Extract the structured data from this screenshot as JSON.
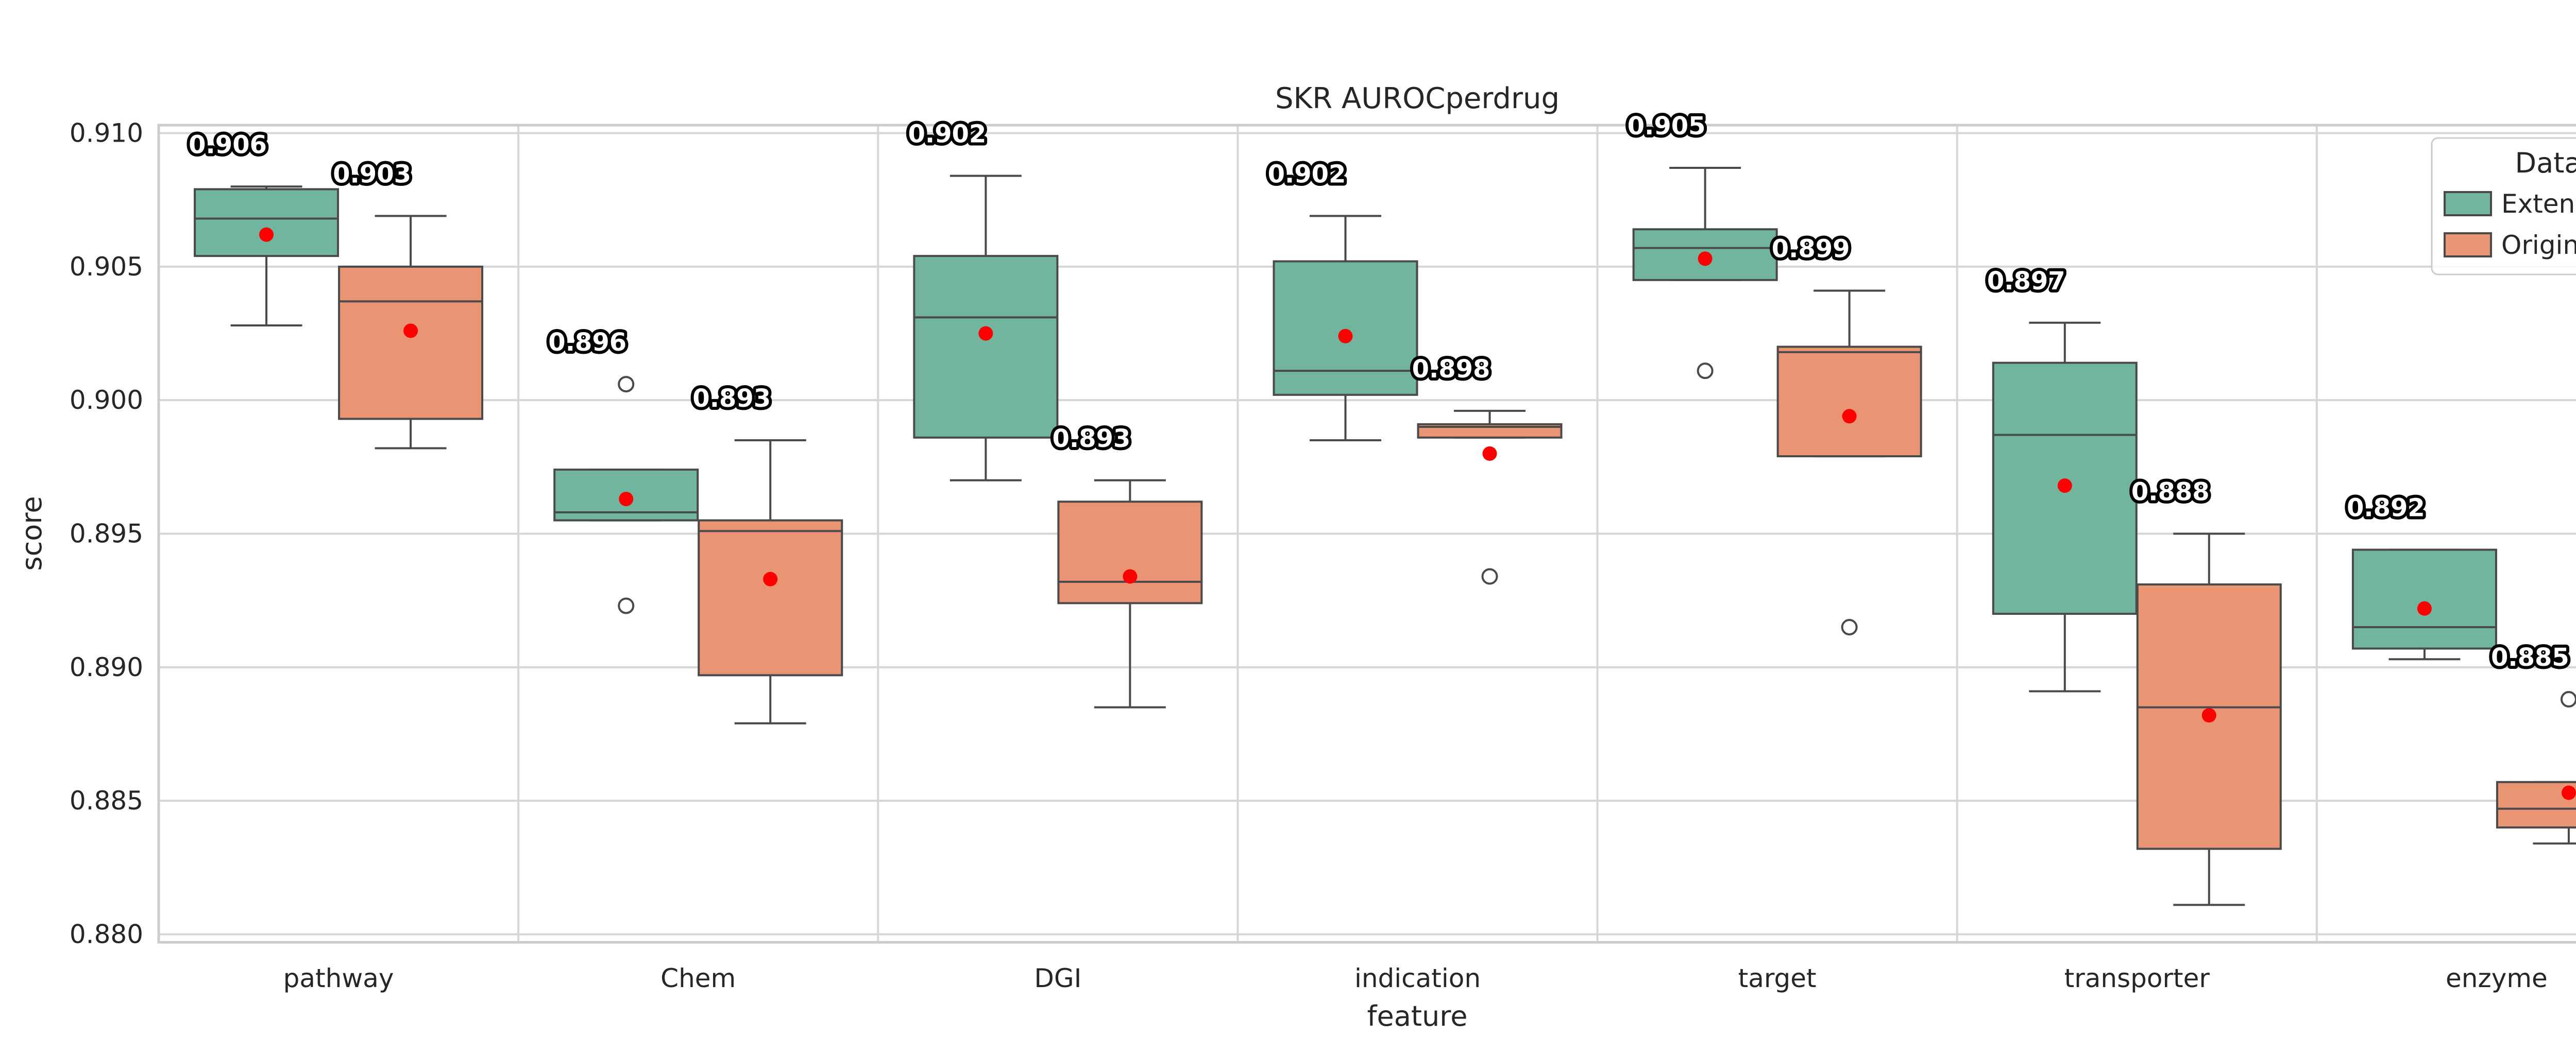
{
  "chart_data": {
    "type": "box",
    "title": "SKR AUROCperdrug",
    "xlabel": "feature",
    "ylabel": "score",
    "ylim": [
      0.8797,
      0.9103
    ],
    "yticks": [
      "0.880",
      "0.885",
      "0.890",
      "0.895",
      "0.900",
      "0.905",
      "0.910"
    ],
    "categories": [
      "pathway",
      "Chem",
      "DGI",
      "indication",
      "target",
      "transporter",
      "enzyme"
    ],
    "grid": true,
    "legend": {
      "title": "Data",
      "placement": "top-right",
      "entries": [
        {
          "name": "Extended",
          "color": "#72b59f"
        },
        {
          "name": "Original",
          "color": "#e99574"
        }
      ]
    },
    "series": [
      {
        "name": "Extended",
        "color": "#72b59f",
        "boxes": [
          {
            "category": "pathway",
            "whisker_low": 0.9028,
            "q1": 0.9054,
            "median": 0.9068,
            "q3": 0.9079,
            "whisker_high": 0.908,
            "outliers": [],
            "mean": 0.9062,
            "mean_label": "0.906"
          },
          {
            "category": "Chem",
            "whisker_low": 0.8955,
            "q1": 0.8955,
            "median": 0.8958,
            "q3": 0.8974,
            "whisker_high": 0.8974,
            "outliers": [
              0.8923,
              0.9006
            ],
            "mean": 0.8963,
            "mean_label": "0.896"
          },
          {
            "category": "DGI",
            "whisker_low": 0.897,
            "q1": 0.8986,
            "median": 0.9031,
            "q3": 0.9054,
            "whisker_high": 0.9084,
            "outliers": [],
            "mean": 0.9025,
            "mean_label": "0.902"
          },
          {
            "category": "indication",
            "whisker_low": 0.8985,
            "q1": 0.9002,
            "median": 0.9011,
            "q3": 0.9052,
            "whisker_high": 0.9069,
            "outliers": [],
            "mean": 0.9024,
            "mean_label": "0.902"
          },
          {
            "category": "target",
            "whisker_low": 0.9045,
            "q1": 0.9045,
            "median": 0.9057,
            "q3": 0.9064,
            "whisker_high": 0.9087,
            "outliers": [
              0.9011
            ],
            "mean": 0.9053,
            "mean_label": "0.905"
          },
          {
            "category": "transporter",
            "whisker_low": 0.8891,
            "q1": 0.892,
            "median": 0.8987,
            "q3": 0.9014,
            "whisker_high": 0.9029,
            "outliers": [],
            "mean": 0.8968,
            "mean_label": "0.897"
          },
          {
            "category": "enzyme",
            "whisker_low": 0.8903,
            "q1": 0.8907,
            "median": 0.8915,
            "q3": 0.8944,
            "whisker_high": 0.8944,
            "outliers": [],
            "mean": 0.8922,
            "mean_label": "0.892"
          }
        ]
      },
      {
        "name": "Original",
        "color": "#e99574",
        "boxes": [
          {
            "category": "pathway",
            "whisker_low": 0.8982,
            "q1": 0.8993,
            "median": 0.9037,
            "q3": 0.905,
            "whisker_high": 0.9069,
            "outliers": [],
            "mean": 0.9026,
            "mean_label": "0.903"
          },
          {
            "category": "Chem",
            "whisker_low": 0.8879,
            "q1": 0.8897,
            "median": 0.8951,
            "q3": 0.8955,
            "whisker_high": 0.8985,
            "outliers": [],
            "mean": 0.8933,
            "mean_label": "0.893"
          },
          {
            "category": "DGI",
            "whisker_low": 0.8885,
            "q1": 0.8924,
            "median": 0.8932,
            "q3": 0.8962,
            "whisker_high": 0.897,
            "outliers": [],
            "mean": 0.8934,
            "mean_label": "0.893"
          },
          {
            "category": "indication",
            "whisker_low": 0.8986,
            "q1": 0.8986,
            "median": 0.899,
            "q3": 0.8991,
            "whisker_high": 0.8996,
            "outliers": [
              0.8934
            ],
            "mean": 0.898,
            "mean_label": "0.898"
          },
          {
            "category": "target",
            "whisker_low": 0.8979,
            "q1": 0.8979,
            "median": 0.9018,
            "q3": 0.902,
            "whisker_high": 0.9041,
            "outliers": [
              0.8915
            ],
            "mean": 0.8994,
            "mean_label": "0.899"
          },
          {
            "category": "transporter",
            "whisker_low": 0.8811,
            "q1": 0.8832,
            "median": 0.8885,
            "q3": 0.8931,
            "whisker_high": 0.895,
            "outliers": [],
            "mean": 0.8882,
            "mean_label": "0.888"
          },
          {
            "category": "enzyme",
            "whisker_low": 0.8834,
            "q1": 0.884,
            "median": 0.8847,
            "q3": 0.8857,
            "whisker_high": 0.8857,
            "outliers": [
              0.8888
            ],
            "mean": 0.8853,
            "mean_label": "0.885"
          }
        ]
      }
    ]
  }
}
